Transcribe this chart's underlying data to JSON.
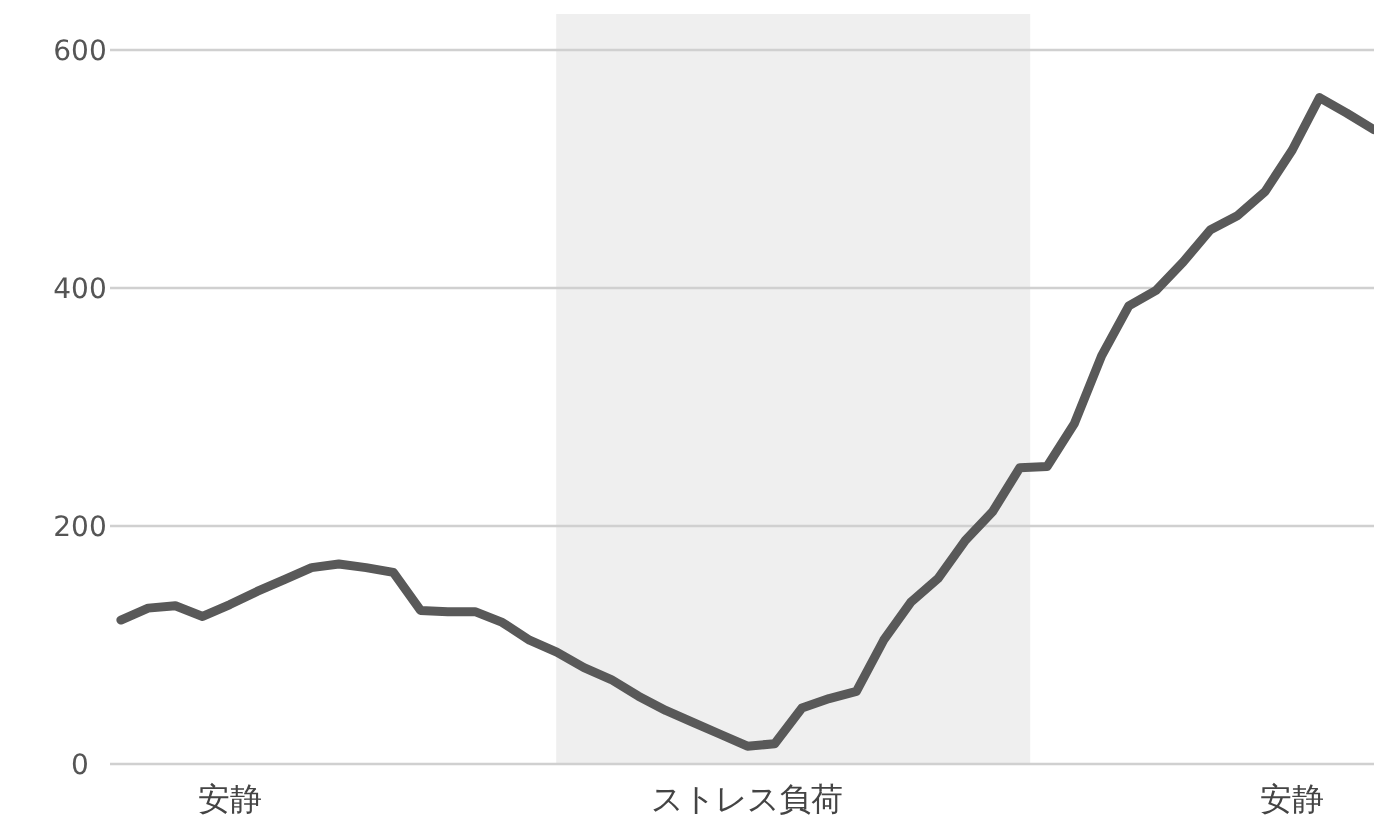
{
  "chart_data": {
    "type": "line",
    "categories": [
      null,
      null,
      null,
      null,
      "安静",
      null,
      null,
      null,
      null,
      null,
      null,
      null,
      null,
      null,
      null,
      null,
      null,
      null,
      null,
      null,
      null,
      null,
      null,
      "ストレス負荷",
      null,
      null,
      null,
      null,
      null,
      null,
      null,
      null,
      null,
      null,
      null,
      null,
      null,
      null,
      null,
      null,
      null,
      null,
      null,
      "安静",
      null,
      null,
      null
    ],
    "series": [
      {
        "color": "#595959",
        "values": [
          121,
          131,
          133,
          124,
          134,
          145,
          155,
          165,
          168,
          165,
          161,
          129,
          128,
          128,
          119,
          104,
          94,
          81,
          71,
          57,
          45,
          35,
          25,
          15,
          17,
          47,
          55,
          61,
          104,
          136,
          156,
          188,
          212,
          249,
          250,
          286,
          343,
          385,
          398,
          422,
          449,
          461,
          481,
          516,
          560,
          547,
          533
        ]
      }
    ],
    "ylim": [
      0,
      600
    ],
    "yticks": [
      0,
      200,
      400,
      600
    ],
    "grid": "y",
    "marker": "none",
    "line_style": "solid"
  }
}
